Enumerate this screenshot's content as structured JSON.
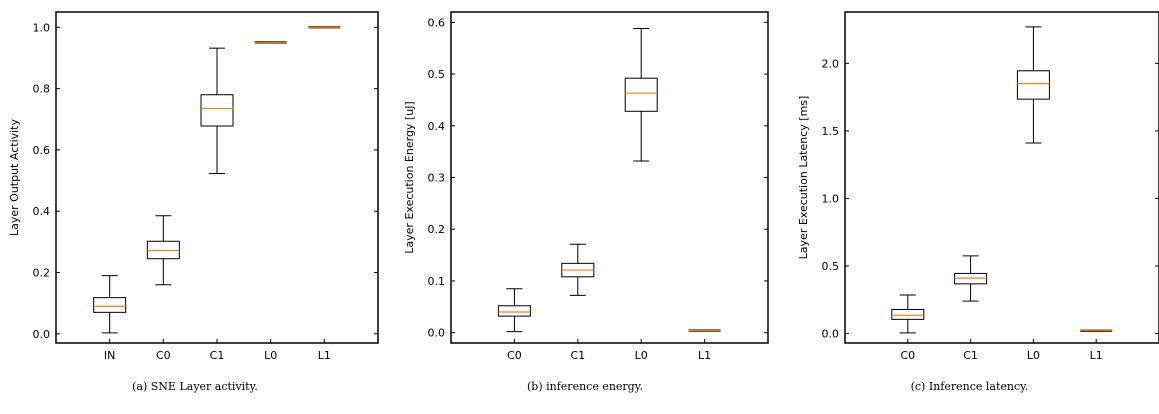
{
  "chart_data": [
    {
      "type": "box",
      "ylabel": "Layer Output Activity",
      "caption": "(a) SNE Layer activity.",
      "categories": [
        "IN",
        "C0",
        "C1",
        "L0",
        "L1"
      ],
      "ylim": [
        -0.03,
        1.05
      ],
      "yticks": [
        0.0,
        0.2,
        0.4,
        0.6,
        0.8,
        1.0
      ],
      "ytick_labels": [
        "0.0",
        "0.2",
        "0.4",
        "0.6",
        "0.8",
        "1.0"
      ],
      "boxes": [
        {
          "whislo": 0.003,
          "q1": 0.07,
          "med": 0.09,
          "q3": 0.118,
          "whishi": 0.19
        },
        {
          "whislo": 0.16,
          "q1": 0.245,
          "med": 0.272,
          "q3": 0.302,
          "whishi": 0.385
        },
        {
          "whislo": 0.523,
          "q1": 0.678,
          "med": 0.735,
          "q3": 0.78,
          "whishi": 0.932
        },
        {
          "whislo": 0.951,
          "q1": 0.951,
          "med": 0.951,
          "q3": 0.951,
          "whishi": 0.951
        },
        {
          "whislo": 1.0,
          "q1": 1.0,
          "med": 1.0,
          "q3": 1.0,
          "whishi": 1.0
        }
      ]
    },
    {
      "type": "box",
      "ylabel": "Layer Execution Energy [uJ]",
      "caption": "(b) inference energy.",
      "categories": [
        "C0",
        "C1",
        "L0",
        "L1"
      ],
      "ylim": [
        -0.02,
        0.62
      ],
      "yticks": [
        0.0,
        0.1,
        0.2,
        0.3,
        0.4,
        0.5,
        0.6
      ],
      "ytick_labels": [
        "0.0",
        "0.1",
        "0.2",
        "0.3",
        "0.4",
        "0.5",
        "0.6"
      ],
      "boxes": [
        {
          "whislo": 0.002,
          "q1": 0.032,
          "med": 0.04,
          "q3": 0.052,
          "whishi": 0.085
        },
        {
          "whislo": 0.072,
          "q1": 0.108,
          "med": 0.121,
          "q3": 0.134,
          "whishi": 0.171
        },
        {
          "whislo": 0.332,
          "q1": 0.428,
          "med": 0.463,
          "q3": 0.492,
          "whishi": 0.588
        },
        {
          "whislo": 0.004,
          "q1": 0.004,
          "med": 0.004,
          "q3": 0.004,
          "whishi": 0.004
        }
      ]
    },
    {
      "type": "box",
      "ylabel": "Layer Execution Latency [ms]",
      "caption": "(c) Inference latency.",
      "categories": [
        "C0",
        "C1",
        "L0",
        "L1"
      ],
      "ylim": [
        -0.07,
        2.38
      ],
      "yticks": [
        0.0,
        0.5,
        1.0,
        1.5,
        2.0
      ],
      "ytick_labels": [
        "0.0",
        "0.5",
        "1.0",
        "1.5",
        "2.0"
      ],
      "boxes": [
        {
          "whislo": 0.005,
          "q1": 0.105,
          "med": 0.135,
          "q3": 0.178,
          "whishi": 0.285
        },
        {
          "whislo": 0.24,
          "q1": 0.368,
          "med": 0.41,
          "q3": 0.445,
          "whishi": 0.575
        },
        {
          "whislo": 1.41,
          "q1": 1.735,
          "med": 1.85,
          "q3": 1.945,
          "whishi": 2.27
        },
        {
          "whislo": 0.02,
          "q1": 0.02,
          "med": 0.02,
          "q3": 0.02,
          "whishi": 0.02
        }
      ]
    }
  ],
  "colors": {
    "median": "#ff7f0e",
    "box": "#000000",
    "axis": "#000000"
  }
}
